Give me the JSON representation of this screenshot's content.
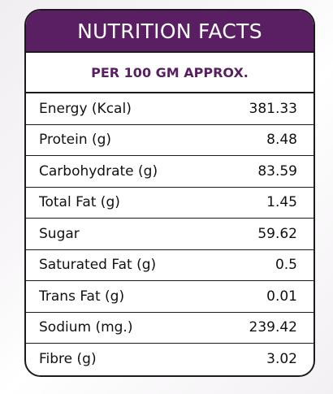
{
  "header": {
    "title": "NUTRITION FACTS",
    "subtitle": "PER 100 GM APPROX."
  },
  "rows": [
    {
      "name": "Energy (Kcal)",
      "value": "381.33"
    },
    {
      "name": "Protein (g)",
      "value": "8.48"
    },
    {
      "name": "Carbohydrate (g)",
      "value": "83.59"
    },
    {
      "name": "Total Fat (g)",
      "value": "1.45"
    },
    {
      "name": "Sugar",
      "value": "59.62"
    },
    {
      "name": "Saturated Fat (g)",
      "value": "0.5"
    },
    {
      "name": "Trans Fat (g)",
      "value": "0.01"
    },
    {
      "name": "Sodium (mg.)",
      "value": "239.42"
    },
    {
      "name": "Fibre (g)",
      "value": "3.02"
    }
  ],
  "colors": {
    "accent": "#5a1f63",
    "border": "#1b1b1b"
  }
}
